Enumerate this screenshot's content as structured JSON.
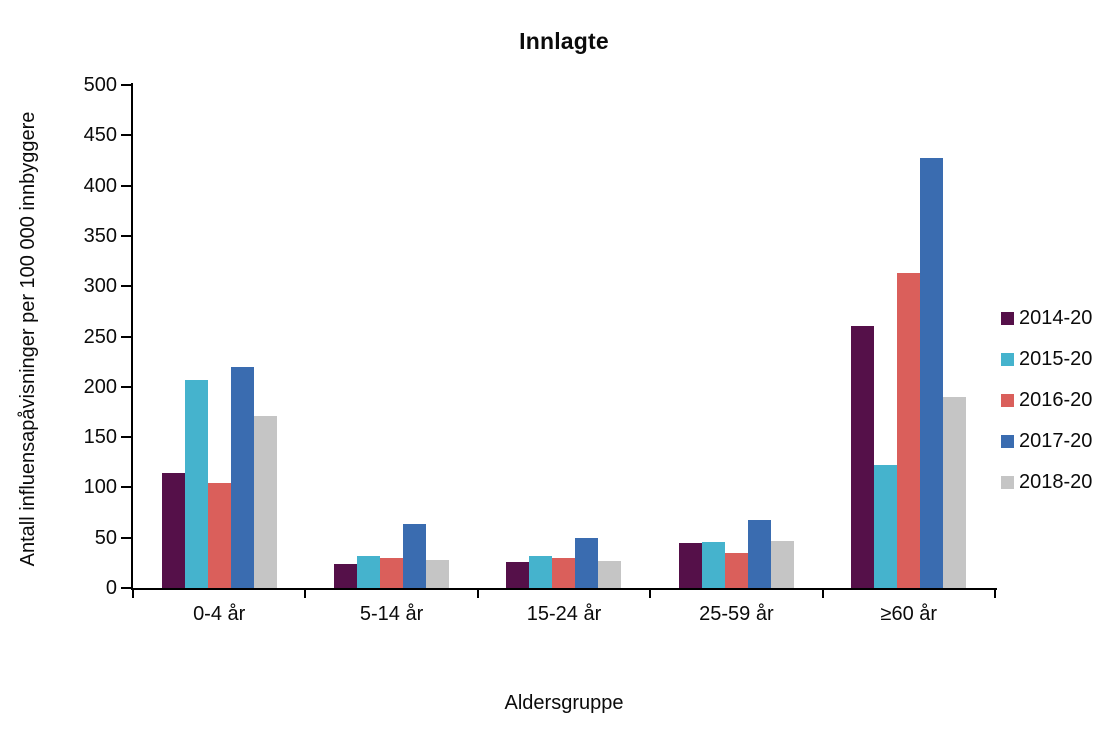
{
  "title": "Innlagte",
  "axes": {
    "y_title": "Antall  influensapåvisninger  per 100 000 innbyggere",
    "x_title": "Aldersgruppe"
  },
  "legend": {
    "position": "right",
    "labels": [
      "2014-20",
      "2015-20",
      "2016-20",
      "2017-20",
      "2018-20"
    ]
  },
  "chart_data": {
    "type": "bar",
    "title": "Innlagte",
    "xlabel": "Aldersgruppe",
    "ylabel": "Antall influensapåvisninger per 100 000 innbyggere",
    "categories": [
      "0-4 år",
      "5-14 år",
      "15-24 år",
      "25-59 år",
      "≥60 år"
    ],
    "series": [
      {
        "name": "2014-20",
        "color": "#551049",
        "values": [
          114,
          24,
          26,
          45,
          260
        ]
      },
      {
        "name": "2015-20",
        "color": "#45B3CD",
        "values": [
          207,
          32,
          32,
          46,
          122
        ]
      },
      {
        "name": "2016-20",
        "color": "#DA5F5B",
        "values": [
          104,
          30,
          30,
          35,
          313
        ]
      },
      {
        "name": "2017-20",
        "color": "#3A6CB0",
        "values": [
          220,
          64,
          50,
          68,
          427
        ]
      },
      {
        "name": "2018-20",
        "color": "#C5C5C5",
        "values": [
          171,
          28,
          27,
          47,
          190
        ],
        "pattern": "dots"
      }
    ],
    "ylim": [
      0,
      500
    ],
    "ytick_step": 50,
    "grid": false,
    "legend_position": "right"
  }
}
